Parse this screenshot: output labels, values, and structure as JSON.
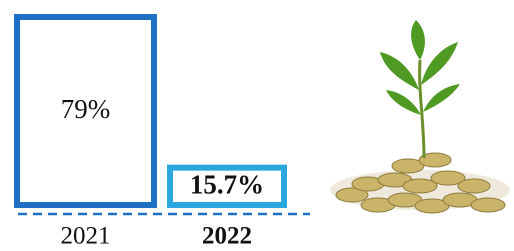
{
  "chart_data": {
    "type": "bar",
    "categories": [
      "2021",
      "2022"
    ],
    "values": [
      79,
      15.7
    ],
    "value_labels": [
      "79%",
      "15.7%"
    ],
    "colors": [
      "#1f6fc5",
      "#2aa7df"
    ]
  }
}
